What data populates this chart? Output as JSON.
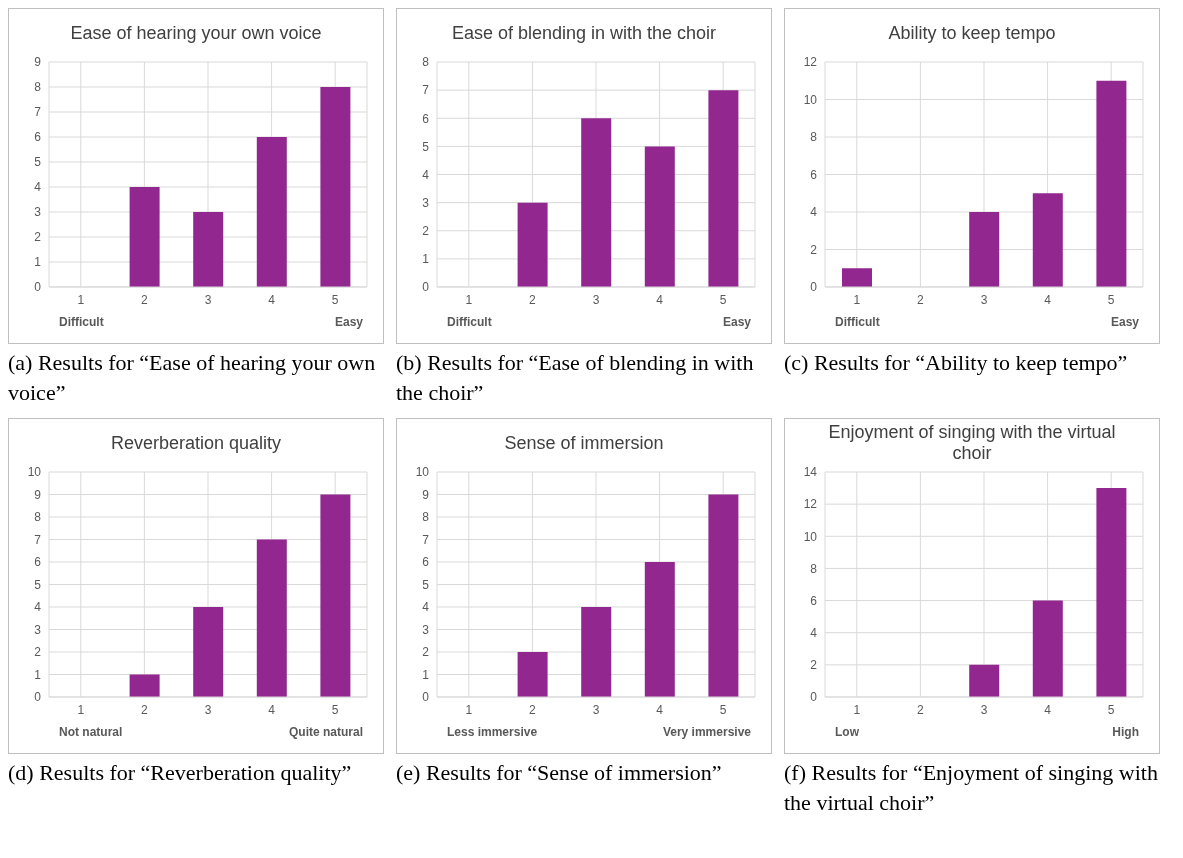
{
  "chart_data": [
    {
      "type": "bar",
      "title": "Ease of hearing your own voice",
      "categories": [
        "1",
        "2",
        "3",
        "4",
        "5"
      ],
      "values": [
        0,
        4,
        3,
        6,
        8
      ],
      "color": "#92278f",
      "ylim": [
        0,
        9
      ],
      "yticks": [
        0,
        1,
        2,
        3,
        4,
        5,
        6,
        7,
        8,
        9
      ],
      "grid": true,
      "annotations": [
        "Difficult",
        "Easy",
        "(a) Results for “Ease of hearing your own voice”"
      ]
    },
    {
      "type": "bar",
      "title": "Ease of blending in with the choir",
      "categories": [
        "1",
        "2",
        "3",
        "4",
        "5"
      ],
      "values": [
        0,
        3,
        6,
        5,
        7
      ],
      "color": "#92278f",
      "ylim": [
        0,
        8
      ],
      "yticks": [
        0,
        1,
        2,
        3,
        4,
        5,
        6,
        7,
        8
      ],
      "grid": true,
      "annotations": [
        "Difficult",
        "Easy",
        "(b) Results for “Ease of blending in with the choir”"
      ]
    },
    {
      "type": "bar",
      "title": "Ability to keep tempo",
      "categories": [
        "1",
        "2",
        "3",
        "4",
        "5"
      ],
      "values": [
        1,
        0,
        4,
        5,
        11
      ],
      "color": "#92278f",
      "ylim": [
        0,
        12
      ],
      "yticks": [
        0,
        2,
        4,
        6,
        8,
        10,
        12
      ],
      "grid": true,
      "annotations": [
        "Difficult",
        "Easy",
        "(c) Results for “Ability to keep tempo”"
      ]
    },
    {
      "type": "bar",
      "title": "Reverberation quality",
      "categories": [
        "1",
        "2",
        "3",
        "4",
        "5"
      ],
      "values": [
        0,
        1,
        4,
        7,
        9
      ],
      "color": "#92278f",
      "ylim": [
        0,
        10
      ],
      "yticks": [
        0,
        1,
        2,
        3,
        4,
        5,
        6,
        7,
        8,
        9,
        10
      ],
      "grid": true,
      "annotations": [
        "Not natural",
        "Quite natural",
        "(d) Results for “Reverberation quality”"
      ]
    },
    {
      "type": "bar",
      "title": "Sense of immersion",
      "categories": [
        "1",
        "2",
        "3",
        "4",
        "5"
      ],
      "values": [
        0,
        2,
        4,
        6,
        9
      ],
      "color": "#92278f",
      "ylim": [
        0,
        10
      ],
      "yticks": [
        0,
        1,
        2,
        3,
        4,
        5,
        6,
        7,
        8,
        9,
        10
      ],
      "grid": true,
      "annotations": [
        "Less immersive",
        "Very immersive",
        "(e) Results for “Sense of immersion”"
      ]
    },
    {
      "type": "bar",
      "title": "Enjoyment of singing with the virtual choir",
      "categories": [
        "1",
        "2",
        "3",
        "4",
        "5"
      ],
      "values": [
        0,
        0,
        2,
        6,
        13
      ],
      "color": "#92278f",
      "ylim": [
        0,
        14
      ],
      "yticks": [
        0,
        2,
        4,
        6,
        8,
        10,
        12,
        14
      ],
      "grid": true,
      "annotations": [
        "Low",
        "High",
        "(f) Results for “Enjoyment of singing with the virtual choir”"
      ]
    }
  ]
}
